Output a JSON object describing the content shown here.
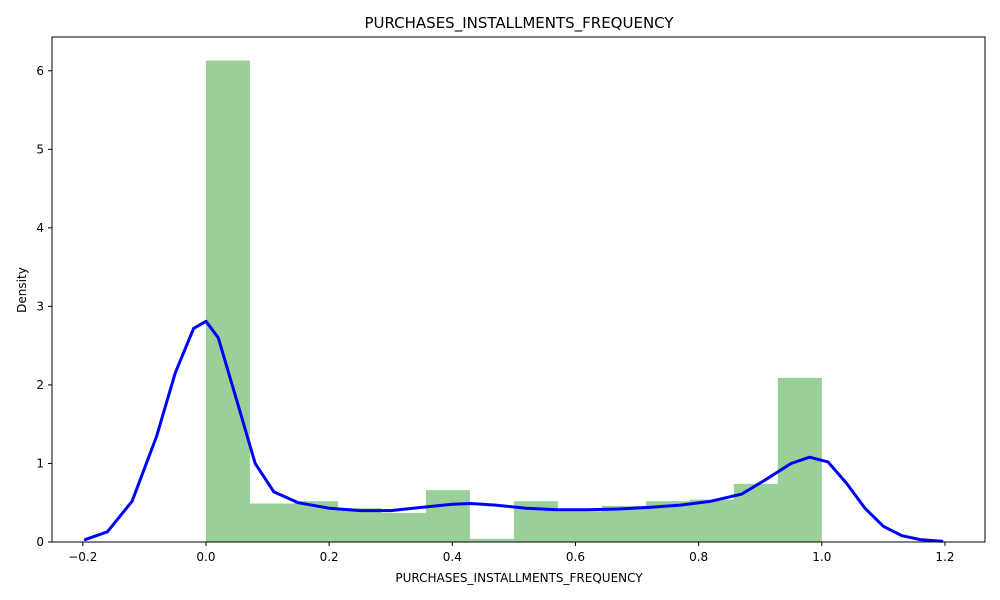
{
  "chart_data": {
    "type": "bar",
    "title": "PURCHASES_INSTALLMENTS_FREQUENCY",
    "xlabel": "PURCHASES_INSTALLMENTS_FREQUENCY",
    "ylabel": "Density",
    "xlim": [
      -0.25,
      1.265
    ],
    "ylim": [
      0,
      6.43
    ],
    "xticks": [
      -0.2,
      0.0,
      0.2,
      0.4,
      0.6,
      0.8,
      1.0,
      1.2
    ],
    "xtick_labels": [
      "−0.2",
      "0.0",
      "0.2",
      "0.4",
      "0.6",
      "0.8",
      "1.0",
      "1.2"
    ],
    "yticks": [
      0,
      1,
      2,
      3,
      4,
      5,
      6
    ],
    "ytick_labels": [
      "0",
      "1",
      "2",
      "3",
      "4",
      "5",
      "6"
    ],
    "histogram": {
      "color": "#2ca02c",
      "bin_edges": [
        0.0,
        0.0714,
        0.1429,
        0.2143,
        0.2857,
        0.3571,
        0.4286,
        0.5,
        0.5714,
        0.6429,
        0.7143,
        0.7857,
        0.8571,
        0.9286,
        1.0
      ],
      "densities": [
        6.13,
        0.49,
        0.52,
        0.43,
        0.37,
        0.66,
        0.04,
        0.52,
        0.39,
        0.46,
        0.52,
        0.54,
        0.74,
        2.09
      ]
    },
    "kde": {
      "color": "#0000ff",
      "x": [
        -0.196,
        -0.16,
        -0.12,
        -0.08,
        -0.05,
        -0.02,
        0.0,
        0.02,
        0.05,
        0.08,
        0.11,
        0.15,
        0.2,
        0.25,
        0.3,
        0.35,
        0.4,
        0.43,
        0.47,
        0.52,
        0.57,
        0.62,
        0.67,
        0.72,
        0.77,
        0.82,
        0.87,
        0.91,
        0.95,
        0.98,
        1.01,
        1.04,
        1.07,
        1.1,
        1.13,
        1.16,
        1.195
      ],
      "y": [
        0.03,
        0.13,
        0.52,
        1.35,
        2.15,
        2.72,
        2.81,
        2.6,
        1.8,
        1.0,
        0.64,
        0.5,
        0.43,
        0.4,
        0.4,
        0.44,
        0.48,
        0.49,
        0.47,
        0.43,
        0.41,
        0.41,
        0.42,
        0.44,
        0.47,
        0.52,
        0.61,
        0.8,
        1.0,
        1.08,
        1.02,
        0.75,
        0.43,
        0.2,
        0.08,
        0.03,
        0.01
      ]
    }
  }
}
